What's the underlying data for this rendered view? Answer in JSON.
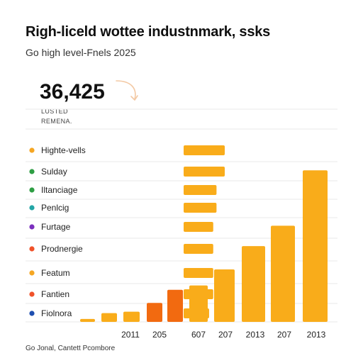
{
  "header": {
    "title": "Righ-liceld wottee industnmark, ssks",
    "subtitle": "Go high level-Fnels 2025"
  },
  "kpi": {
    "value": "36,425",
    "label_1": "LUSTED",
    "label_2": "REMENA."
  },
  "footer": {
    "text": "Go Jonal, Cantett Pcombore"
  },
  "colors": {
    "orange_light": "#F9AC1A",
    "orange_mid": "#F59E0B",
    "orange_deep": "#F26A10",
    "gridline": "#e8e8e8",
    "legend_orange": "#F5A623",
    "legend_green": "#2E9E44",
    "legend_teal": "#23A6A6",
    "legend_purple": "#7B2FBE",
    "legend_red_orange": "#F0522A",
    "legend_blue": "#1E4FB0"
  },
  "chart_data": {
    "type": "bar",
    "title": "Righ-liceld wottee industnmark, ssks",
    "subtitle": "Go high level-Fnels 2025",
    "legend": {
      "placement": "left",
      "entries": [
        {
          "label": "Highte-vells",
          "color": "#F5A623"
        },
        {
          "label": "Sulday",
          "color": "#2E9E44"
        },
        {
          "label": "Iltanciage",
          "color": "#2E9E44"
        },
        {
          "label": "Penlcig",
          "color": "#23A6A6"
        },
        {
          "label": "Furtage",
          "color": "#7B2FBE"
        },
        {
          "label": "Prodnergie",
          "color": "#F0522A"
        },
        {
          "label": "Featum",
          "color": "#F5A623"
        },
        {
          "label": "Fantien",
          "color": "#F0522A"
        },
        {
          "label": "Fiolnora",
          "color": "#1E4FB0"
        }
      ]
    },
    "x_tick_labels": [
      "2011",
      "205",
      "607",
      "207",
      "2013",
      "207",
      "2013"
    ],
    "grid": true,
    "vertical_bars": {
      "values": [
        1,
        3,
        3.5,
        6.5,
        11,
        12.5,
        18,
        26,
        33,
        52,
        72
      ],
      "colors": [
        "#F9AC1A",
        "#F9AC1A",
        "#F9AC1A",
        "#F26A10",
        "#F26A10",
        "#F9AC1A",
        "#F9AC1A",
        "#F9AC1A",
        "#F9AC1A",
        "#F9AC1A",
        "#F9AC1A"
      ],
      "ylim": [
        0,
        72
      ]
    },
    "horizontal_bars": {
      "values": [
        100,
        100,
        80,
        80,
        72,
        72,
        72,
        72,
        62
      ],
      "ylim": [
        0,
        100
      ]
    }
  }
}
